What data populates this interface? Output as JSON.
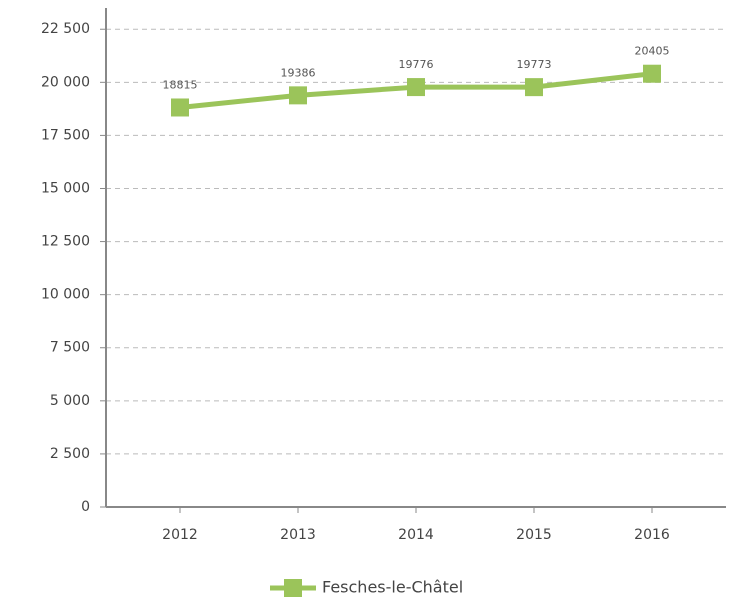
{
  "chart_data": {
    "type": "line",
    "categories": [
      "2012",
      "2013",
      "2014",
      "2015",
      "2016"
    ],
    "series": [
      {
        "name": "Fesches-le-Châtel",
        "color": "#9bc45a",
        "values": [
          18815,
          19386,
          19776,
          19773,
          20405
        ]
      }
    ],
    "ylim": [
      0,
      23500
    ],
    "yticks": [
      0,
      {
        "value": 2500,
        "label": "2 500"
      },
      {
        "value": 5000,
        "label": "5 000"
      },
      {
        "value": 7500,
        "label": "7 500"
      },
      {
        "value": 10000,
        "label": "10 000"
      },
      {
        "value": 12500,
        "label": "12 500"
      },
      {
        "value": 15000,
        "label": "15 000"
      },
      {
        "value": 17500,
        "label": "17 500"
      },
      {
        "value": 20000,
        "label": "20 000"
      },
      {
        "value": 22500,
        "label": "22 500"
      }
    ],
    "grid": true,
    "legend": "bottom"
  }
}
